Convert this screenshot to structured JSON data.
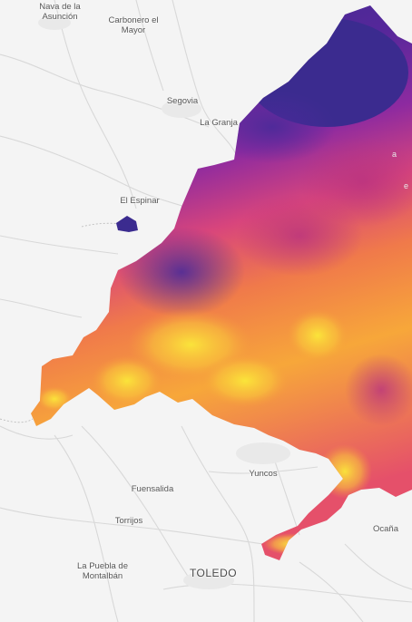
{
  "map": {
    "places": [
      {
        "name": "Nava de la",
        "line2": "Asunción",
        "key": "nava"
      },
      {
        "name": "Carbonero el",
        "line2": "Mayor",
        "key": "carbonero"
      },
      {
        "name": "Segovia",
        "key": "segovia"
      },
      {
        "name": "La Granja",
        "key": "granja"
      },
      {
        "name": "El Espinar",
        "key": "espinar"
      },
      {
        "name": "Yuncos",
        "key": "yuncos"
      },
      {
        "name": "Fuensalida",
        "key": "fuensalida"
      },
      {
        "name": "Torrijos",
        "key": "torrijos"
      },
      {
        "name": "La Puebla de",
        "line2": "Montalbán",
        "key": "puebla"
      },
      {
        "name": "TOLEDO",
        "key": "toledo"
      },
      {
        "name": "Ocaña",
        "key": "ocana"
      }
    ],
    "partial_labels": [
      "a",
      "e"
    ],
    "colors": {
      "background": "#f4f4f4",
      "roads": "#d6d6d6",
      "heat_low": "#3b2b8f",
      "heat_mid": "#c2398a",
      "heat_high": "#fbe23a"
    }
  }
}
